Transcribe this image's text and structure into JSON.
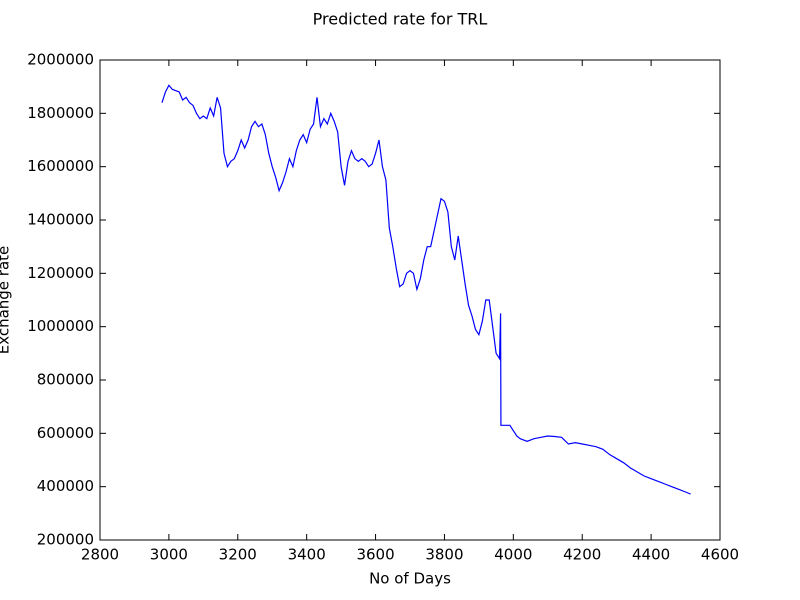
{
  "chart_data": {
    "type": "line",
    "title": "Predicted rate for TRL",
    "x_label": "No of Days",
    "y_label": "Exchange rate",
    "xlim": [
      2800,
      4600
    ],
    "xticks": [
      2800,
      3000,
      3200,
      3400,
      3600,
      3800,
      4000,
      4200,
      4400,
      4600
    ],
    "ylim": [
      200000,
      2000000
    ],
    "yticks": [
      200000,
      400000,
      600000,
      800000,
      1000000,
      1200000,
      1400000,
      1600000,
      1800000,
      2000000
    ],
    "series": [
      {
        "color": "#0000ff",
        "x": [
          2980,
          2990,
          3000,
          3010,
          3020,
          3030,
          3040,
          3050,
          3060,
          3070,
          3080,
          3090,
          3100,
          3110,
          3120,
          3130,
          3140,
          3150,
          3160,
          3170,
          3180,
          3190,
          3200,
          3210,
          3220,
          3230,
          3240,
          3250,
          3260,
          3270,
          3280,
          3290,
          3300,
          3310,
          3320,
          3330,
          3340,
          3350,
          3360,
          3370,
          3380,
          3390,
          3400,
          3410,
          3420,
          3430,
          3440,
          3450,
          3460,
          3470,
          3480,
          3490,
          3500,
          3510,
          3520,
          3530,
          3540,
          3550,
          3560,
          3570,
          3580,
          3590,
          3600,
          3610,
          3620,
          3630,
          3640,
          3650,
          3660,
          3670,
          3680,
          3690,
          3700,
          3710,
          3720,
          3730,
          3740,
          3750,
          3760,
          3770,
          3780,
          3790,
          3800,
          3810,
          3820,
          3830,
          3840,
          3850,
          3860,
          3870,
          3880,
          3890,
          3900,
          3910,
          3920,
          3930,
          3940,
          3950,
          3960,
          3963,
          3964,
          3980,
          3990,
          4000,
          4010,
          4020,
          4040,
          4060,
          4080,
          4100,
          4120,
          4140,
          4160,
          4180,
          4200,
          4220,
          4240,
          4260,
          4280,
          4300,
          4320,
          4340,
          4360,
          4380,
          4400,
          4420,
          4440,
          4460,
          4480,
          4500,
          4515
        ],
        "values": [
          1840000,
          1880000,
          1905000,
          1890000,
          1885000,
          1880000,
          1850000,
          1860000,
          1840000,
          1830000,
          1800000,
          1780000,
          1790000,
          1780000,
          1820000,
          1790000,
          1860000,
          1820000,
          1650000,
          1600000,
          1620000,
          1630000,
          1660000,
          1700000,
          1670000,
          1700000,
          1750000,
          1770000,
          1750000,
          1760000,
          1720000,
          1650000,
          1600000,
          1560000,
          1510000,
          1540000,
          1580000,
          1630000,
          1600000,
          1660000,
          1700000,
          1720000,
          1690000,
          1740000,
          1760000,
          1860000,
          1750000,
          1780000,
          1760000,
          1800000,
          1770000,
          1730000,
          1600000,
          1530000,
          1620000,
          1660000,
          1630000,
          1620000,
          1630000,
          1620000,
          1600000,
          1610000,
          1650000,
          1700000,
          1600000,
          1550000,
          1370000,
          1300000,
          1220000,
          1150000,
          1160000,
          1200000,
          1210000,
          1200000,
          1140000,
          1180000,
          1250000,
          1300000,
          1300000,
          1360000,
          1420000,
          1480000,
          1470000,
          1430000,
          1300000,
          1250000,
          1340000,
          1250000,
          1160000,
          1080000,
          1040000,
          990000,
          970000,
          1020000,
          1100000,
          1100000,
          1000000,
          900000,
          880000,
          1050000,
          630000,
          630000,
          630000,
          610000,
          590000,
          580000,
          570000,
          580000,
          585000,
          590000,
          588000,
          585000,
          560000,
          565000,
          560000,
          555000,
          550000,
          540000,
          520000,
          505000,
          490000,
          470000,
          455000,
          440000,
          430000,
          420000,
          410000,
          400000,
          390000,
          380000,
          372000
        ]
      }
    ]
  }
}
